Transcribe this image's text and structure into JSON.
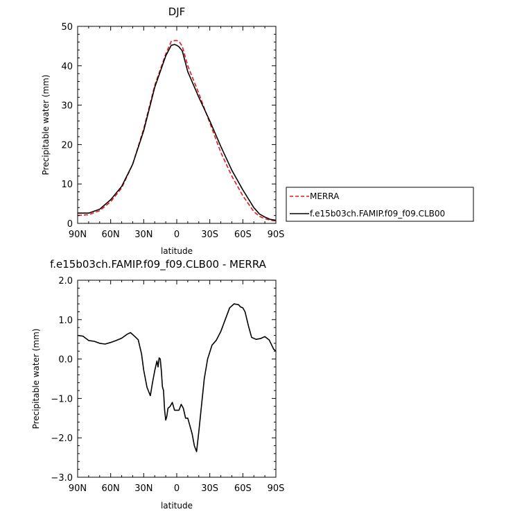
{
  "chart_data": [
    {
      "type": "line",
      "title": "DJF",
      "xlabel": "latitude",
      "ylabel": "Precipitable water (mm)",
      "xlim": [
        90,
        -90
      ],
      "ylim": [
        0,
        50
      ],
      "x_ticks": [
        90,
        60,
        30,
        0,
        -30,
        -60,
        -90
      ],
      "x_tick_labels": [
        "90N",
        "60N",
        "30N",
        "0",
        "30S",
        "60S",
        "90S"
      ],
      "y_ticks": [
        0,
        10,
        20,
        30,
        40,
        50
      ],
      "y_tick_labels": [
        "0",
        "10",
        "20",
        "30",
        "40",
        "50"
      ],
      "grid": false,
      "legend_position": "right",
      "series": [
        {
          "name": "MERRA",
          "color": "#e8141c",
          "dash": "dashed",
          "x": [
            90,
            80,
            70,
            60,
            50,
            40,
            30,
            20,
            10,
            5,
            2,
            0,
            -2,
            -5,
            -10,
            -20,
            -30,
            -40,
            -50,
            -60,
            -70,
            -75,
            -80,
            -85,
            -90
          ],
          "y": [
            2.0,
            2.2,
            3.2,
            5.5,
            9.0,
            15.0,
            24.0,
            35.0,
            43.0,
            46.2,
            46.4,
            46.4,
            46.2,
            45.0,
            40.0,
            33.0,
            25.5,
            18.0,
            12.0,
            7.0,
            3.0,
            1.8,
            1.2,
            0.8,
            0.6
          ]
        },
        {
          "name": "f.e15b03ch.FAMIP.f09_f09.CLB00",
          "color": "#000000",
          "dash": "solid",
          "x": [
            90,
            80,
            70,
            60,
            50,
            40,
            30,
            20,
            10,
            5,
            2,
            0,
            -2,
            -5,
            -10,
            -20,
            -30,
            -40,
            -50,
            -60,
            -70,
            -75,
            -80,
            -85,
            -90
          ],
          "y": [
            2.6,
            2.6,
            3.6,
            6.0,
            9.4,
            15.0,
            23.5,
            34.5,
            42.5,
            45.2,
            45.4,
            45.2,
            44.8,
            43.8,
            38.5,
            32.0,
            26.0,
            19.5,
            13.5,
            8.5,
            4.0,
            2.4,
            1.6,
            1.0,
            0.8
          ]
        }
      ]
    },
    {
      "type": "line",
      "title": "f.e15b03ch.FAMIP.f09_f09.CLB00 - MERRA",
      "xlabel": "latitude",
      "ylabel": "Precipitable water (mm)",
      "xlim": [
        90,
        -90
      ],
      "ylim": [
        -3.0,
        2.0
      ],
      "x_ticks": [
        90,
        60,
        30,
        0,
        -30,
        -60,
        -90
      ],
      "x_tick_labels": [
        "90N",
        "60N",
        "30N",
        "0",
        "30S",
        "60S",
        "90S"
      ],
      "y_ticks": [
        -3.0,
        -2.0,
        -1.0,
        0.0,
        1.0,
        2.0
      ],
      "y_tick_labels": [
        "-3.0",
        "-2.0",
        "-1.0",
        "0.0",
        "1.0",
        "2.0"
      ],
      "grid": false,
      "series": [
        {
          "color": "#000000",
          "dash": "solid",
          "x": [
            90,
            85,
            80,
            75,
            70,
            65,
            60,
            55,
            50,
            45,
            42,
            38,
            35,
            32,
            30,
            27,
            24,
            22,
            20,
            18,
            17,
            16,
            15,
            14,
            13,
            12,
            11,
            10,
            9,
            8,
            6,
            4,
            2,
            0,
            -2,
            -4,
            -6,
            -8,
            -10,
            -12,
            -14,
            -16,
            -18,
            -20,
            -22,
            -25,
            -28,
            -32,
            -36,
            -40,
            -44,
            -48,
            -52,
            -56,
            -58,
            -60,
            -62,
            -65,
            -68,
            -72,
            -76,
            -80,
            -84,
            -88,
            -90
          ],
          "y": [
            0.6,
            0.58,
            0.47,
            0.45,
            0.4,
            0.38,
            0.42,
            0.47,
            0.53,
            0.63,
            0.67,
            0.57,
            0.49,
            0.13,
            -0.28,
            -0.72,
            -0.93,
            -0.6,
            -0.3,
            -0.05,
            -0.2,
            0.03,
            0.0,
            -0.3,
            -0.7,
            -0.8,
            -1.3,
            -1.55,
            -1.45,
            -1.25,
            -1.2,
            -1.1,
            -1.3,
            -1.3,
            -1.3,
            -1.15,
            -1.25,
            -1.5,
            -1.5,
            -1.7,
            -1.9,
            -2.2,
            -2.35,
            -1.85,
            -1.3,
            -0.5,
            0.0,
            0.35,
            0.48,
            0.7,
            1.0,
            1.3,
            1.4,
            1.38,
            1.32,
            1.3,
            1.2,
            0.85,
            0.55,
            0.5,
            0.52,
            0.57,
            0.48,
            0.25,
            0.2
          ]
        }
      ]
    }
  ]
}
